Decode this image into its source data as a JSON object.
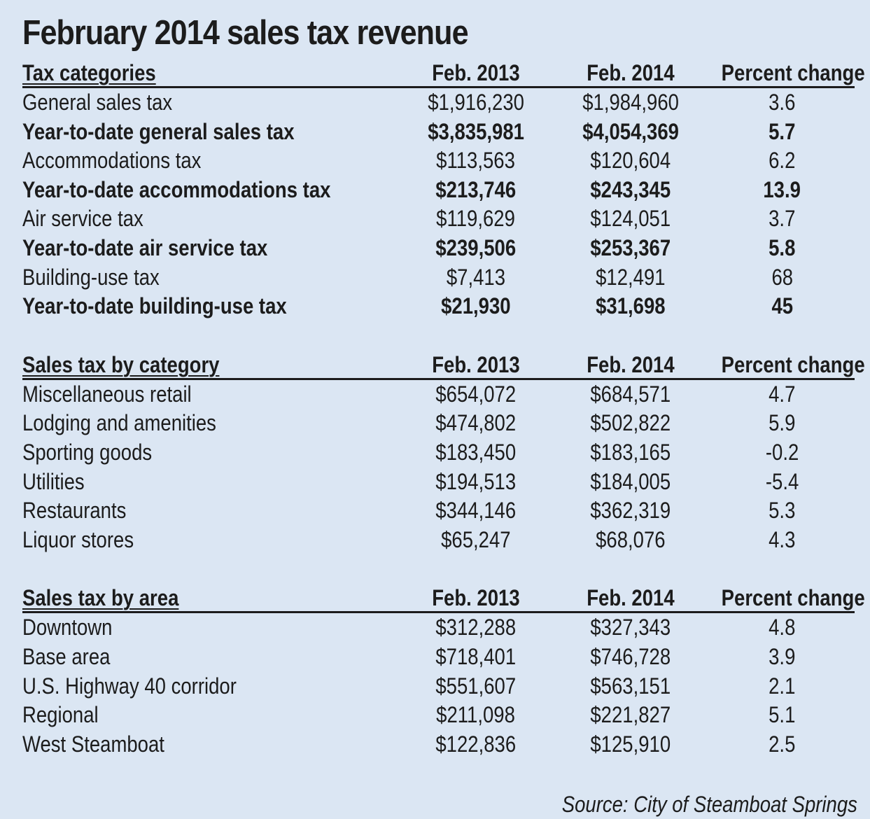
{
  "title": "February 2014 sales tax revenue",
  "sections": [
    {
      "header": [
        "Tax categories",
        "Feb. 2013",
        "Feb. 2014",
        "Percent change"
      ],
      "rows": [
        {
          "label": "General sales tax",
          "feb2013": "$1,916,230",
          "feb2014": "$1,984,960",
          "pct": "3.6",
          "bold": false
        },
        {
          "label": "Year-to-date general sales tax",
          "feb2013": "$3,835,981",
          "feb2014": "$4,054,369",
          "pct": "5.7",
          "bold": true
        },
        {
          "label": "Accommodations tax",
          "feb2013": "$113,563",
          "feb2014": "$120,604",
          "pct": "6.2",
          "bold": false
        },
        {
          "label": "Year-to-date accommodations tax",
          "feb2013": "$213,746",
          "feb2014": "$243,345",
          "pct": "13.9",
          "bold": true
        },
        {
          "label": "Air service tax",
          "feb2013": "$119,629",
          "feb2014": "$124,051",
          "pct": "3.7",
          "bold": false
        },
        {
          "label": "Year-to-date air service tax",
          "feb2013": "$239,506",
          "feb2014": "$253,367",
          "pct": "5.8",
          "bold": true
        },
        {
          "label": "Building-use tax",
          "feb2013": "$7,413",
          "feb2014": "$12,491",
          "pct": "68",
          "bold": false
        },
        {
          "label": "Year-to-date building-use tax",
          "feb2013": "$21,930",
          "feb2014": "$31,698",
          "pct": "45",
          "bold": true
        }
      ]
    },
    {
      "header": [
        "Sales tax by category",
        "Feb. 2013",
        "Feb. 2014",
        "Percent change"
      ],
      "rows": [
        {
          "label": "Miscellaneous retail",
          "feb2013": "$654,072",
          "feb2014": "$684,571",
          "pct": "4.7",
          "bold": false
        },
        {
          "label": "Lodging and amenities",
          "feb2013": "$474,802",
          "feb2014": "$502,822",
          "pct": "5.9",
          "bold": false
        },
        {
          "label": "Sporting goods",
          "feb2013": "$183,450",
          "feb2014": "$183,165",
          "pct": "-0.2",
          "bold": false
        },
        {
          "label": "Utilities",
          "feb2013": "$194,513",
          "feb2014": "$184,005",
          "pct": "-5.4",
          "bold": false
        },
        {
          "label": "Restaurants",
          "feb2013": "$344,146",
          "feb2014": "$362,319",
          "pct": "5.3",
          "bold": false
        },
        {
          "label": "Liquor stores",
          "feb2013": "$65,247",
          "feb2014": "$68,076",
          "pct": "4.3",
          "bold": false
        }
      ]
    },
    {
      "header": [
        "Sales tax by area",
        "Feb. 2013",
        "Feb. 2014",
        "Percent change"
      ],
      "rows": [
        {
          "label": "Downtown",
          "feb2013": "$312,288",
          "feb2014": "$327,343",
          "pct": "4.8",
          "bold": false
        },
        {
          "label": "Base area",
          "feb2013": "$718,401",
          "feb2014": "$746,728",
          "pct": "3.9",
          "bold": false
        },
        {
          "label": "U.S. Highway 40 corridor",
          "feb2013": "$551,607",
          "feb2014": "$563,151",
          "pct": "2.1",
          "bold": false
        },
        {
          "label": "Regional",
          "feb2013": "$211,098",
          "feb2014": "$221,827",
          "pct": "5.1",
          "bold": false
        },
        {
          "label": "West Steamboat",
          "feb2013": "$122,836",
          "feb2014": "$125,910",
          "pct": "2.5",
          "bold": false
        }
      ]
    }
  ],
  "source": "Source: City of Steamboat Springs",
  "colors": {
    "background": "#dbe6f3",
    "text": "#1c1c1c"
  }
}
